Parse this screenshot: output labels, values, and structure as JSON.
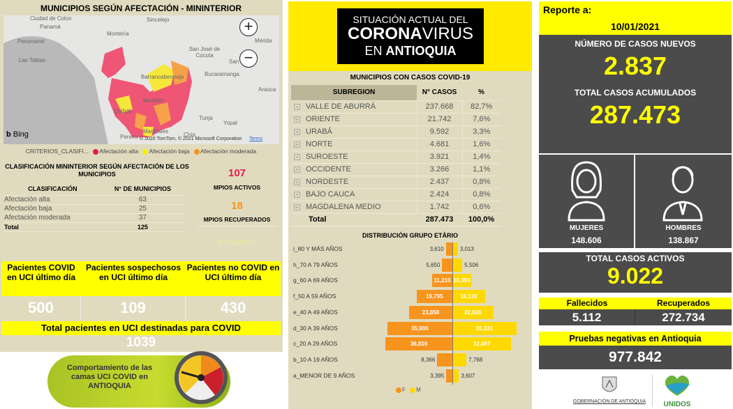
{
  "map_panel": {
    "title": "MUNICIPIOS SEGÚN AFECTACIÓN - MININTERIOR",
    "places": [
      "Ciudad de Colon",
      "Panamá",
      "Penonomé",
      "Las Tablas",
      "Montería",
      "Sincelejo",
      "San José de Cúcuta",
      "San",
      "Mérida",
      "Bucaramanga",
      "Barrancabermeja",
      "Arauca",
      "Medellín",
      "Quibdó",
      "Tunja",
      "Yopal",
      "Manizales",
      "Pereira",
      "Chía"
    ],
    "bing": "Bing",
    "copyright": "© 2020 TomTom, © 2021 Microsoft Corporation",
    "terms": "Terms",
    "legend_label": "CRITERIOS_CLASIFI...",
    "legend": [
      {
        "label": "Afectación alta",
        "color": "#e8194f"
      },
      {
        "label": "Afectación baja",
        "color": "#f7f000"
      },
      {
        "label": "Afectación moderada",
        "color": "#f7941d"
      }
    ]
  },
  "classification": {
    "title": "CLASIFICACIÓN MININTERIOR SEGÚN AFECTACIÓN DE LOS MUNICIPIOS",
    "headers": [
      "CLASIFICACIÓN",
      "N° DE MUNICIPIOS"
    ],
    "rows": [
      {
        "name": "Afectación alta",
        "value": "63"
      },
      {
        "name": "Afectación baja",
        "value": "25"
      },
      {
        "name": "Afectación moderada",
        "value": "37"
      }
    ],
    "total": {
      "name": "Total",
      "value": "125"
    },
    "activos": "107",
    "activos_label": "MPIOS ACTIVOS",
    "recuperados": "18",
    "recuperados_label": "MPIOS RECUPERADOS",
    "blank": "(En blanco)"
  },
  "uci": {
    "cells": [
      {
        "label": "Pacientes COVID en UCI último día",
        "value": "500"
      },
      {
        "label": "Pacientes sospechosos en UCI último día",
        "value": "109"
      },
      {
        "label": "Pacientes no COVID en UCI último día",
        "value": "430"
      }
    ],
    "total_label": "Total pacientes en UCI destinadas para COVID",
    "total_value": "1039",
    "gauge_button": "Comportamiento de las camas UCI COVID en ANTIOQUIA"
  },
  "banner": {
    "line1": "SITUACIÓN ACTUAL DEL",
    "line2a": "CORONA",
    "line2b": "VIRUS",
    "line3a": "EN ",
    "line3b": "ANTIOQUIA"
  },
  "subregions": {
    "title": "MUNICIPIOS CON CASOS COVID-19",
    "headers": [
      "SUBREGION",
      "N° CASOS",
      "%"
    ],
    "rows": [
      [
        "VALLE DE ABURRÁ",
        "237.668",
        "82,7%"
      ],
      [
        "ORIENTE",
        "21.742",
        "7,6%"
      ],
      [
        "URABÁ",
        "9.592",
        "3,3%"
      ],
      [
        "NORTE",
        "4.681",
        "1,6%"
      ],
      [
        "SUROESTE",
        "3.921",
        "1,4%"
      ],
      [
        "OCCIDENTE",
        "3.266",
        "1,1%"
      ],
      [
        "NORDESTE",
        "2.437",
        "0,8%"
      ],
      [
        "BAJO CAUCA",
        "2.424",
        "0,8%"
      ],
      [
        "MAGDALENA MEDIO",
        "1.742",
        "0,6%"
      ]
    ],
    "total": [
      "Total",
      "287.473",
      "100,0%"
    ]
  },
  "chart_data": {
    "type": "bar",
    "title": "DISTRIBUCIÓN GRUPO ETÁRIO",
    "categories": [
      "i_80 Y MÁS AÑOS",
      "h_70 A 79 AÑOS",
      "g_60 A 69 AÑOS",
      "f_50 A 59 AÑOS",
      "e_40 A 49 AÑOS",
      "d_30 A 39 AÑOS",
      "c_20 A 29 AÑOS",
      "b_10 A 19 AÑOS",
      "a_MENOR DE 9 AÑOS"
    ],
    "series": [
      {
        "name": "F",
        "color": "#f7941d",
        "values": [
          3610,
          5650,
          11210,
          19795,
          23858,
          35906,
          36816,
          8366,
          3395
        ],
        "labels": [
          "3,610",
          "5,650",
          "11,210",
          "19,795",
          "23,858",
          "35,906",
          "36,816",
          "8,366",
          "3,395"
        ]
      },
      {
        "name": "M",
        "color": "#ffd800",
        "values": [
          3013,
          5506,
          10393,
          18126,
          22626,
          35331,
          32497,
          7768,
          3607
        ],
        "labels": [
          "3,013",
          "5,506",
          "10,393",
          "18,126",
          "22,626",
          "35,331",
          "32,497",
          "7,768",
          "3,607"
        ]
      }
    ],
    "legend": "bottom"
  },
  "report": {
    "label": "Reporte a:",
    "date": "10/01/2021",
    "new_label": "NÚMERO DE CASOS NUEVOS",
    "new_value": "2.837",
    "total_label": "TOTAL CASOS ACUMULADOS",
    "total_value": "287.473",
    "women_label": "MUJERES",
    "women_value": "148.606",
    "men_label": "HOMBRES",
    "men_value": "138.867",
    "active_label": "TOTAL CASOS ACTIVOS",
    "active_value": "9.022",
    "deaths_label": "Fallecidos",
    "deaths_value": "5.112",
    "recovered_label": "Recuperados",
    "recovered_value": "272.734",
    "negative_label": "Pruebas negativas en Antioquia",
    "negative_value": "977.842",
    "logo1": "GOBERNACIÓN DE ANTIOQUIA",
    "logo2": "UNIDOS"
  }
}
